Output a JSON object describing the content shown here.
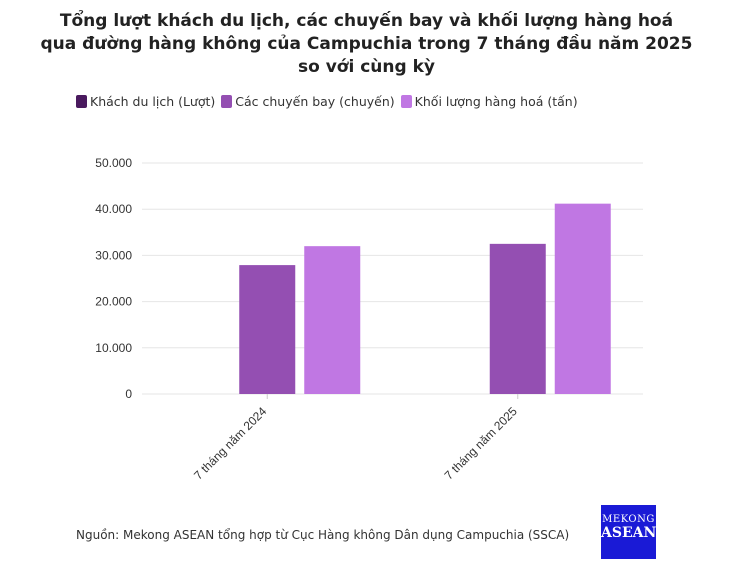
{
  "chart_data": {
    "type": "bar",
    "title_lines": [
      "Tổng lượt khách du lịch, các chuyến bay và khối lượng hàng hoá",
      "qua đường hàng không của Campuchia trong 7 tháng đầu năm 2025",
      "so với cùng kỳ"
    ],
    "categories": [
      "7 tháng năm 2024",
      "7 tháng năm 2025"
    ],
    "series": [
      {
        "name": "Khách du lịch (Lượt)",
        "color": "#4a1a5e",
        "values": [
          null,
          null
        ]
      },
      {
        "name": "Các chuyến bay (chuyến)",
        "color": "#944fb2",
        "values": [
          27900,
          32500
        ]
      },
      {
        "name": "Khối lượng hàng hoá (tấn)",
        "color": "#c077e3",
        "values": [
          32000,
          41200
        ]
      }
    ],
    "ylim": [
      0,
      50000
    ],
    "yticks": [
      0,
      10000,
      20000,
      30000,
      40000,
      50000
    ],
    "ytick_labels": [
      "0",
      "10.000",
      "20.000",
      "30.000",
      "40.000",
      "50.000"
    ],
    "grid": true,
    "legend_position": "top-left"
  },
  "source": "Nguồn: Mekong ASEAN tổng hợp từ Cục Hàng không Dân dụng Campuchia (SSCA)",
  "logo": {
    "line1": "MEKONG",
    "line2": "ASEAN"
  }
}
